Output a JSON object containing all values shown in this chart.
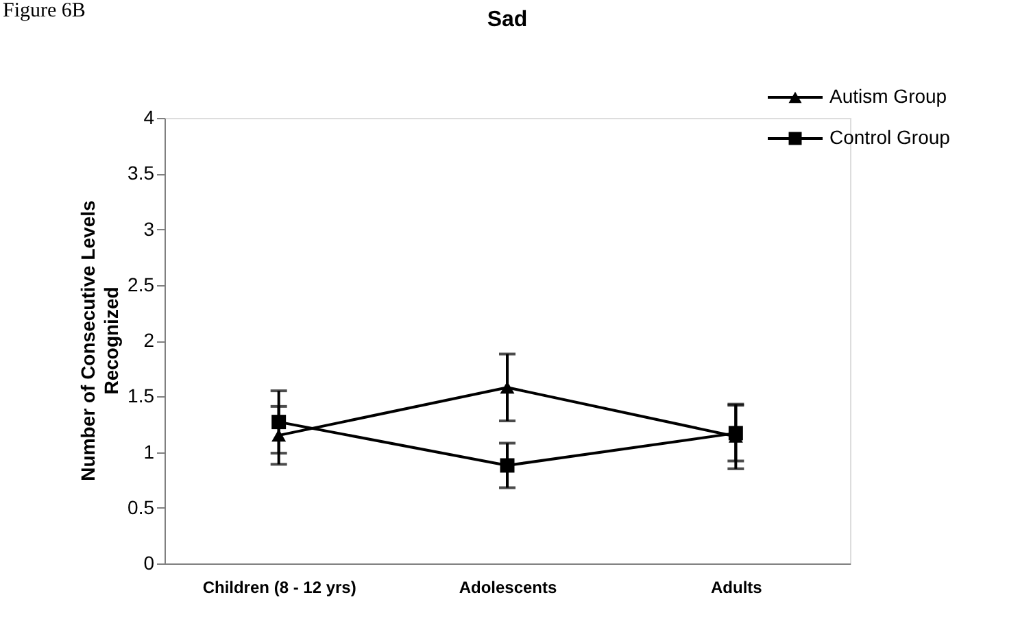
{
  "chart_data": {
    "type": "line",
    "title": "Sad",
    "ylabel": "Number of Consecutive Levels\nRecognized",
    "annotations": [
      "Figure 6B"
    ],
    "categories": [
      "Children (8 - 12 yrs)",
      "Adolescents",
      "Adults"
    ],
    "series": [
      {
        "name": "Autism Group",
        "color": "#000000",
        "marker": "triangle",
        "values": [
          1.15,
          1.58,
          1.14
        ],
        "errors": [
          0.26,
          0.3,
          0.29
        ]
      },
      {
        "name": "Control Group",
        "color": "#000000",
        "marker": "square",
        "values": [
          1.27,
          0.88,
          1.17
        ],
        "errors": [
          0.28,
          0.2,
          0.25
        ]
      }
    ],
    "ylim": [
      0,
      4
    ],
    "yticks": [
      0,
      0.5,
      1,
      1.5,
      2,
      2.5,
      3,
      3.5,
      4
    ],
    "grid": false,
    "legend": "top right",
    "line_style": "solid"
  }
}
